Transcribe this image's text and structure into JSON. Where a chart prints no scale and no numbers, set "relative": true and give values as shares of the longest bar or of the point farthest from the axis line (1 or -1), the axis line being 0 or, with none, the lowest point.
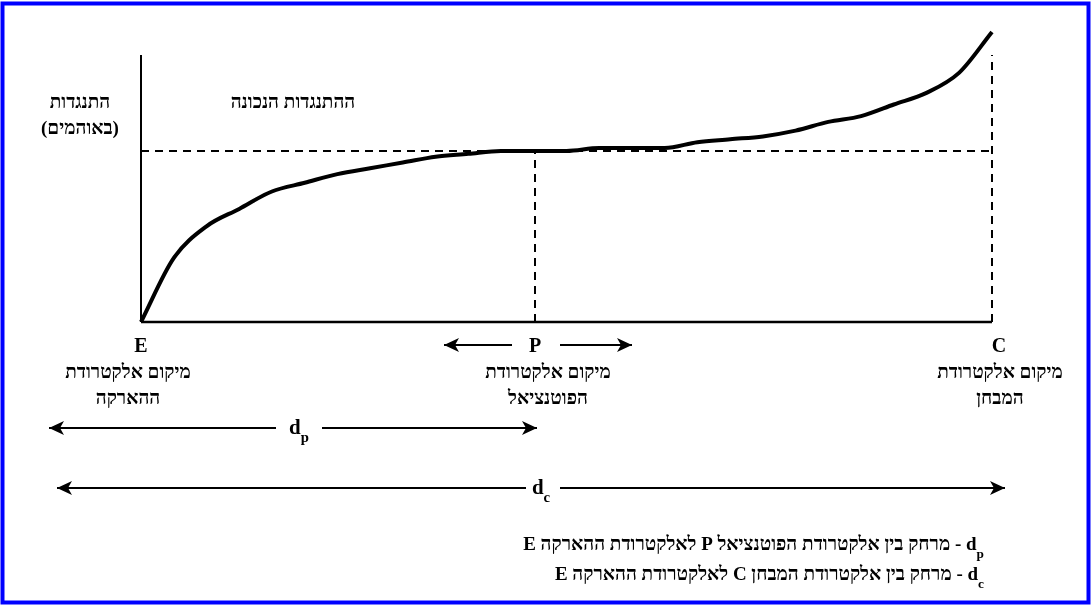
{
  "chart_data": {
    "type": "line",
    "relative": true,
    "marker": "none",
    "ylabel": "התנגדות\n(באוהמים)",
    "categories": [
      null,
      null,
      null,
      null,
      null,
      null,
      null,
      null,
      null,
      null,
      null,
      null,
      null,
      null,
      null,
      null,
      null,
      null,
      null,
      null,
      null,
      null,
      null,
      null,
      null,
      null,
      null
    ],
    "series": [
      {
        "color": "#000000",
        "line_style": "solid",
        "values": [
          0,
          0.22,
          0.33,
          0.39,
          0.45,
          0.48,
          0.51,
          0.53,
          0.55,
          0.57,
          0.58,
          0.59,
          0.59,
          0.59,
          0.6,
          0.6,
          0.6,
          0.62,
          0.63,
          0.64,
          0.66,
          0.69,
          0.71,
          0.75,
          0.79,
          0.86,
          1
        ]
      }
    ],
    "ref_lines": [
      {
        "axis": "y",
        "value": 0.59,
        "color": "#000000",
        "line_style": "dashed"
      }
    ],
    "annotations": [
      "ההתנגדות הנכונה",
      "E",
      "מיקום אלקטרודת\nההארקה",
      "P",
      "מיקום אלקטרודת\nהפוטנציאל",
      "C",
      "מיקום אלקטרודת\nהמבחן",
      "d$_{p}$",
      "d$_{c}$",
      "d$_{p}$ - מרחק בין אלקטרודת הפוטנציאל P לאלקטרודת ההארקה E",
      "d$_{c}$ - מרחק בין אלקטרודת המבחן C לאלקטרודת ההארקה E"
    ]
  }
}
